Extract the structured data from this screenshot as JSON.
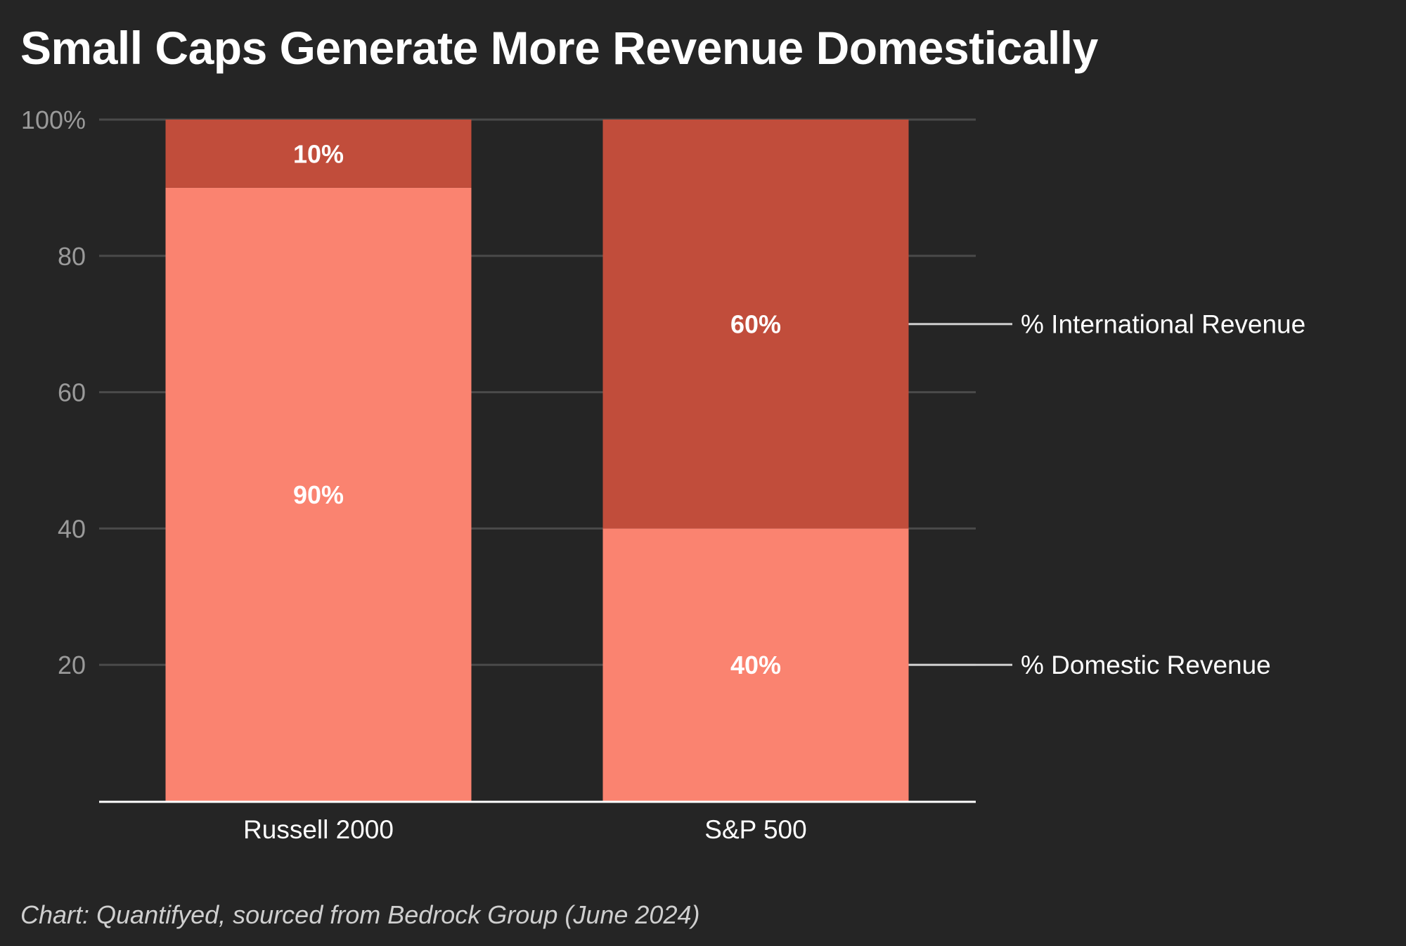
{
  "title": "Small Caps Generate More Revenue Domestically",
  "footer": "Chart: Quantifyed, sourced from Bedrock Group (June 2024)",
  "chart_data": {
    "type": "bar",
    "stacked": true,
    "categories": [
      "Russell 2000",
      "S&P 500"
    ],
    "series": [
      {
        "name": "% Domestic Revenue",
        "values": [
          90,
          40
        ],
        "value_labels": [
          "90%",
          "40%"
        ],
        "color": "#fa8370"
      },
      {
        "name": "% International Revenue",
        "values": [
          10,
          60
        ],
        "value_labels": [
          "10%",
          "60%"
        ],
        "color": "#c14d3b"
      }
    ],
    "ylim": [
      0,
      100
    ],
    "yticks": [
      20,
      40,
      60,
      80,
      100
    ],
    "ytick_labels": [
      "20",
      "40",
      "60",
      "80",
      "100%"
    ],
    "grid": true,
    "legend": "right, labels at end of last bar"
  },
  "colors": {
    "background": "#252525",
    "grid": "#4a4a4a",
    "axis": "#ffffff",
    "tick_text": "#9a9a9a",
    "label_text": "#ffffff"
  }
}
